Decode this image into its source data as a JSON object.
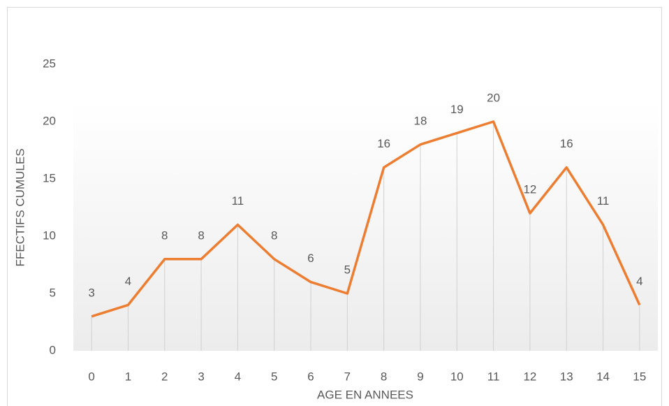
{
  "chart_data": {
    "type": "line",
    "xlabel": "AGE EN ANNEES",
    "ylabel": "FFECTIFS CUMULES",
    "categories": [
      "0",
      "1",
      "2",
      "3",
      "4",
      "5",
      "6",
      "7",
      "8",
      "9",
      "10",
      "11",
      "12",
      "13",
      "14",
      "15"
    ],
    "series": [
      {
        "color": "#ed7d31",
        "values": [
          3,
          4,
          8,
          8,
          11,
          8,
          6,
          5,
          16,
          18,
          19,
          20,
          12,
          16,
          11,
          4
        ]
      }
    ],
    "ylim": [
      0,
      25
    ],
    "yticks": [
      0,
      5,
      10,
      15,
      20,
      25
    ],
    "drop_lines": true,
    "data_labels": true
  }
}
